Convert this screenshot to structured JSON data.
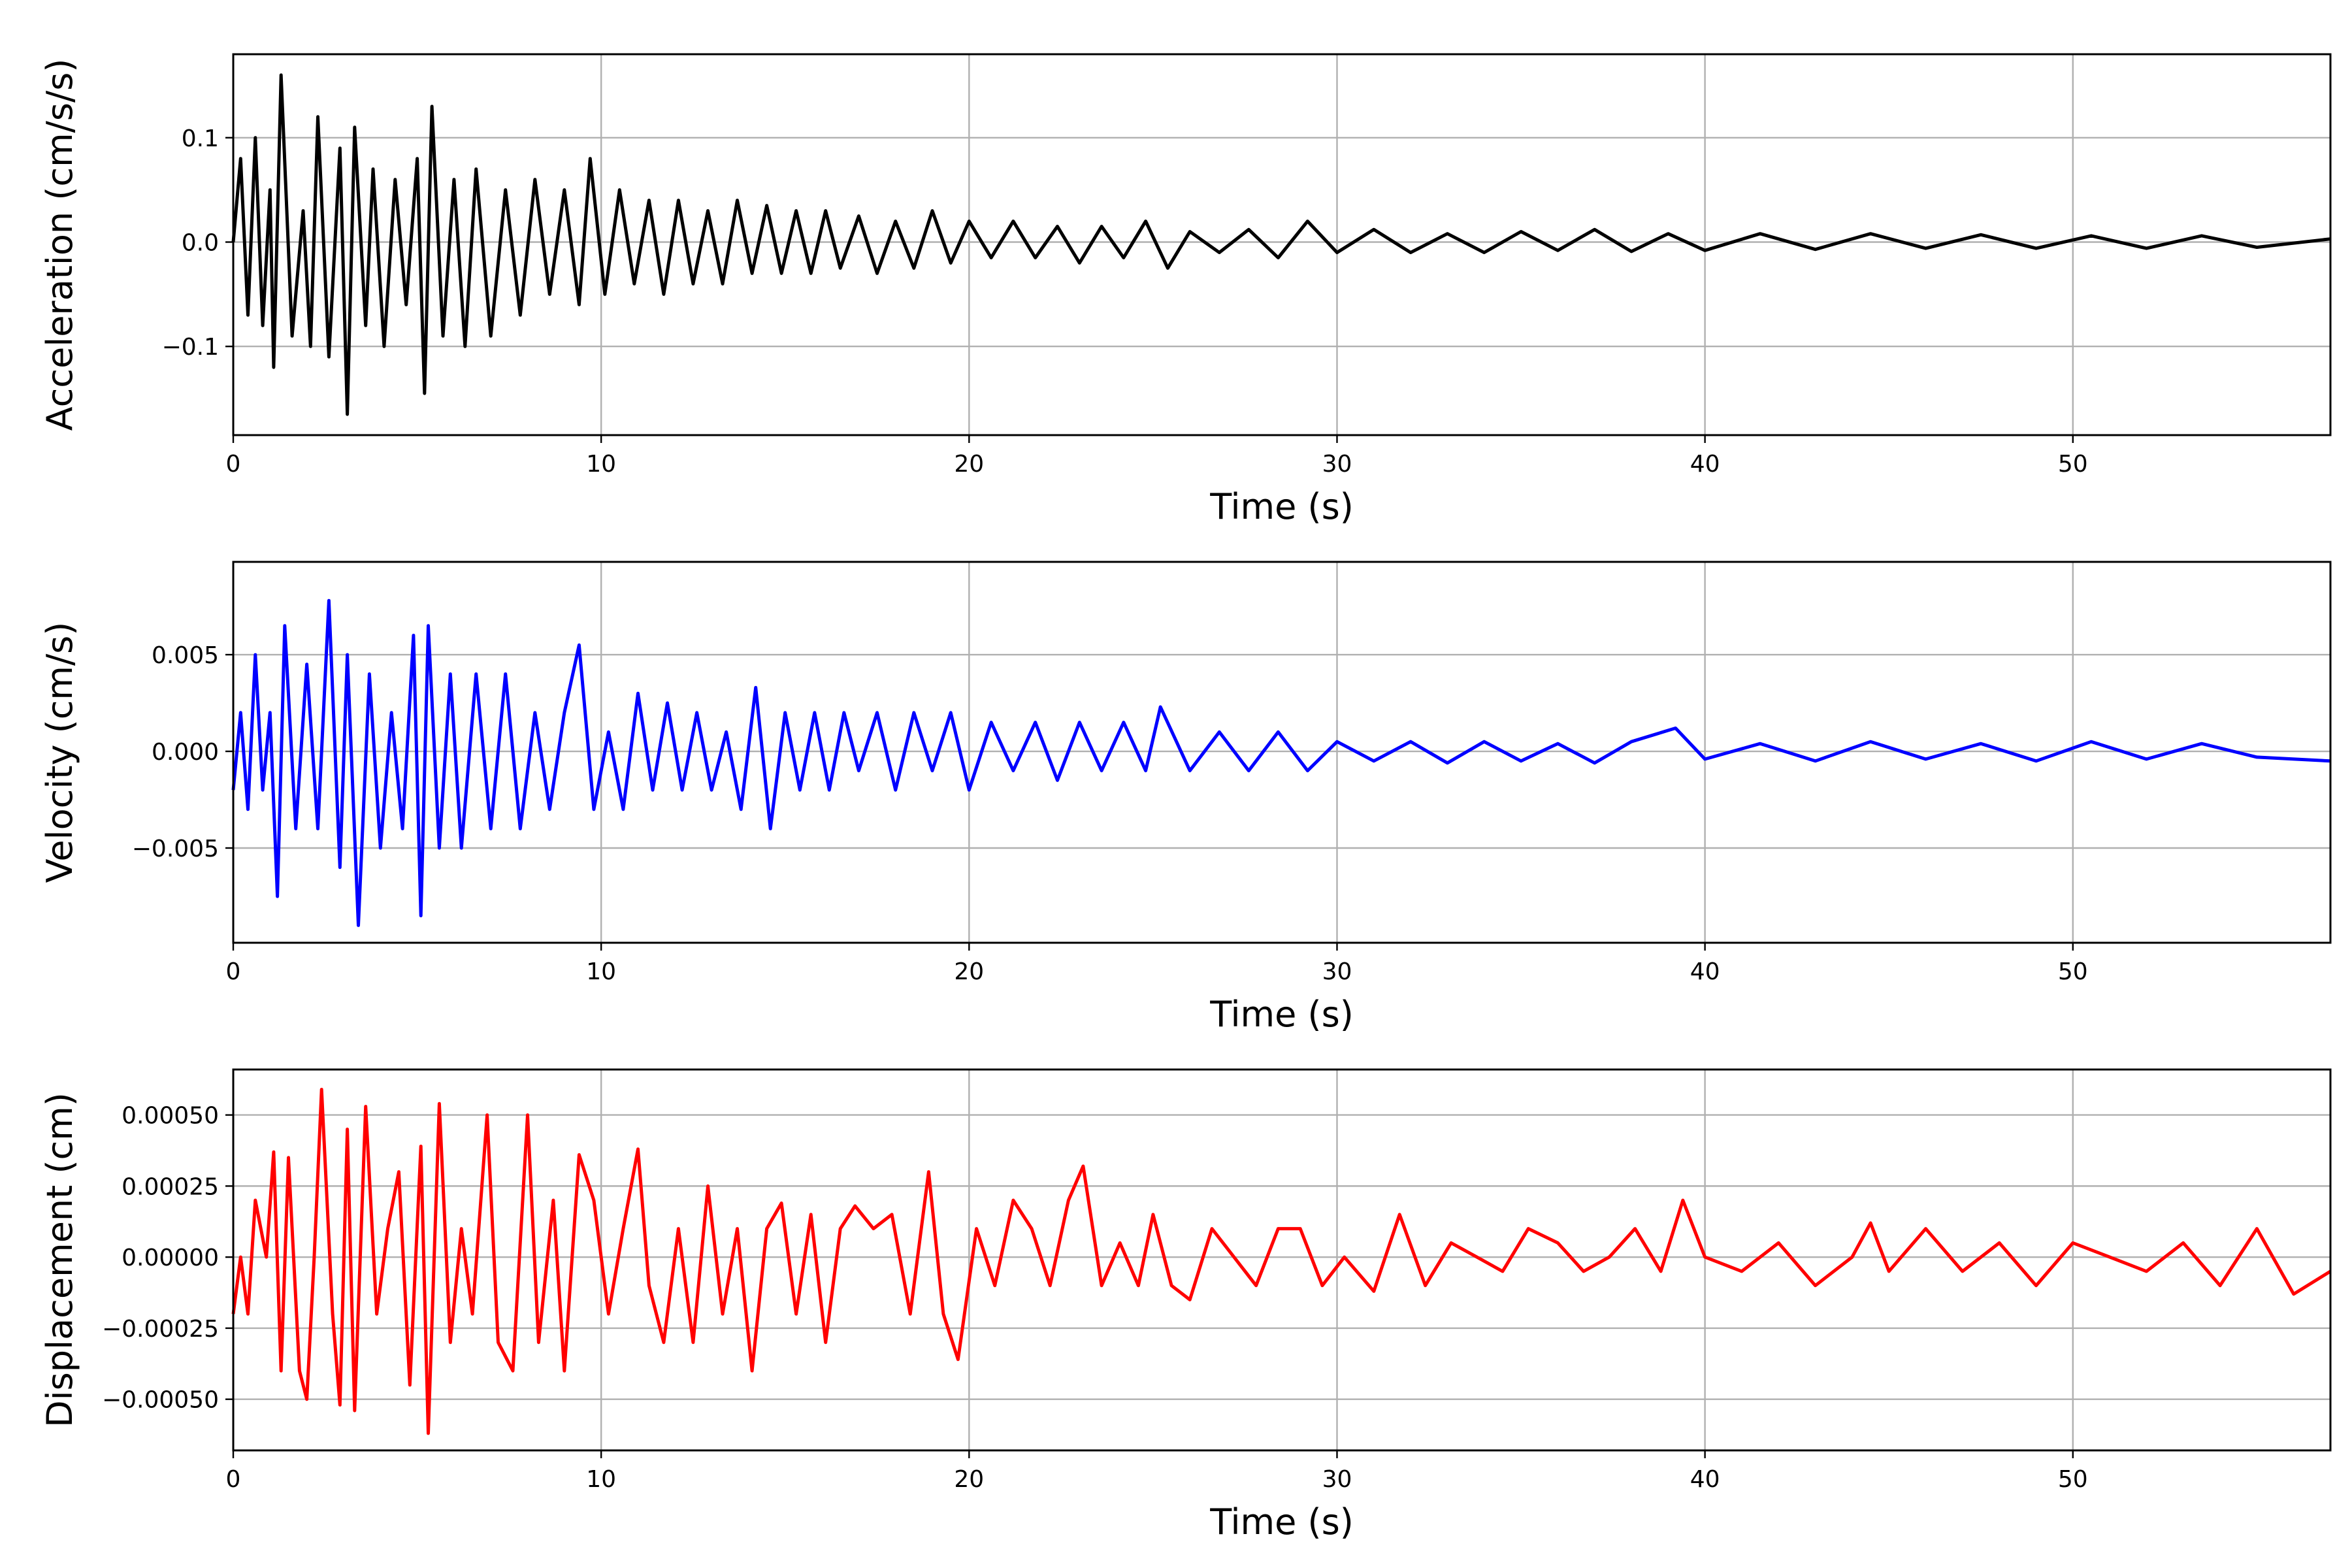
{
  "figure": {
    "background": "#ffffff",
    "grid": true
  },
  "chart_data": [
    {
      "type": "line",
      "title": "",
      "xlabel": "Time (s)",
      "ylabel": "Acceleration (cm/s/s)",
      "xlim": [
        0,
        57
      ],
      "ylim": [
        -0.185,
        0.18
      ],
      "xticks": [
        0,
        10,
        20,
        30,
        40,
        50
      ],
      "xtick_labels": [
        "0",
        "10",
        "20",
        "30",
        "40",
        "50"
      ],
      "yticks": [
        -0.1,
        0.0,
        0.1
      ],
      "ytick_labels": [
        "−0.1",
        "0.0",
        "0.1"
      ],
      "color": "#000000",
      "series": [
        {
          "x": [
            0,
            0.2,
            0.4,
            0.6,
            0.8,
            1.0,
            1.1,
            1.3,
            1.6,
            1.9,
            2.1,
            2.3,
            2.6,
            2.9,
            3.1,
            3.3,
            3.6,
            3.8,
            4.1,
            4.4,
            4.7,
            5.0,
            5.2,
            5.4,
            5.7,
            6.0,
            6.3,
            6.6,
            7.0,
            7.4,
            7.8,
            8.2,
            8.6,
            9.0,
            9.4,
            9.7,
            10.1,
            10.5,
            10.9,
            11.3,
            11.7,
            12.1,
            12.5,
            12.9,
            13.3,
            13.7,
            14.1,
            14.5,
            14.9,
            15.3,
            15.7,
            16.1,
            16.5,
            17.0,
            17.5,
            18.0,
            18.5,
            19.0,
            19.5,
            20.0,
            20.6,
            21.2,
            21.8,
            22.4,
            23.0,
            23.6,
            24.2,
            24.8,
            25.4,
            26.0,
            26.8,
            27.6,
            28.4,
            29.2,
            30.0,
            31.0,
            32.0,
            33.0,
            34.0,
            35.0,
            36.0,
            37.0,
            38.0,
            39.0,
            40.0,
            41.5,
            43.0,
            44.5,
            46.0,
            47.5,
            49.0,
            50.5,
            52.0,
            53.5,
            55.0,
            57.0
          ],
          "y": [
            0.0,
            0.08,
            -0.07,
            0.1,
            -0.08,
            0.05,
            -0.12,
            0.16,
            -0.09,
            0.03,
            -0.1,
            0.12,
            -0.11,
            0.09,
            -0.165,
            0.11,
            -0.08,
            0.07,
            -0.1,
            0.06,
            -0.06,
            0.08,
            -0.145,
            0.13,
            -0.09,
            0.06,
            -0.1,
            0.07,
            -0.09,
            0.05,
            -0.07,
            0.06,
            -0.05,
            0.05,
            -0.06,
            0.08,
            -0.05,
            0.05,
            -0.04,
            0.04,
            -0.05,
            0.04,
            -0.04,
            0.03,
            -0.04,
            0.04,
            -0.03,
            0.035,
            -0.03,
            0.03,
            -0.03,
            0.03,
            -0.025,
            0.025,
            -0.03,
            0.02,
            -0.025,
            0.03,
            -0.02,
            0.02,
            -0.015,
            0.02,
            -0.015,
            0.015,
            -0.02,
            0.015,
            -0.015,
            0.02,
            -0.025,
            0.01,
            -0.01,
            0.012,
            -0.015,
            0.02,
            -0.01,
            0.012,
            -0.01,
            0.008,
            -0.01,
            0.01,
            -0.008,
            0.012,
            -0.009,
            0.008,
            -0.008,
            0.008,
            -0.007,
            0.008,
            -0.006,
            0.007,
            -0.006,
            0.006,
            -0.006,
            0.006,
            -0.005,
            0.003
          ]
        }
      ]
    },
    {
      "type": "line",
      "title": "",
      "xlabel": "Time (s)",
      "ylabel": "Velocity (cm/s)",
      "xlim": [
        0,
        57
      ],
      "ylim": [
        -0.0099,
        0.0098
      ],
      "xticks": [
        0,
        10,
        20,
        30,
        40,
        50
      ],
      "xtick_labels": [
        "0",
        "10",
        "20",
        "30",
        "40",
        "50"
      ],
      "yticks": [
        -0.005,
        0.0,
        0.005
      ],
      "ytick_labels": [
        "−0.005",
        "0.000",
        "0.005"
      ],
      "color": "#0000ff",
      "series": [
        {
          "x": [
            0,
            0.2,
            0.4,
            0.6,
            0.8,
            1.0,
            1.2,
            1.4,
            1.7,
            2.0,
            2.3,
            2.6,
            2.9,
            3.1,
            3.4,
            3.7,
            4.0,
            4.3,
            4.6,
            4.9,
            5.1,
            5.3,
            5.6,
            5.9,
            6.2,
            6.6,
            7.0,
            7.4,
            7.8,
            8.2,
            8.6,
            9.0,
            9.4,
            9.8,
            10.2,
            10.6,
            11.0,
            11.4,
            11.8,
            12.2,
            12.6,
            13.0,
            13.4,
            13.8,
            14.2,
            14.6,
            15.0,
            15.4,
            15.8,
            16.2,
            16.6,
            17.0,
            17.5,
            18.0,
            18.5,
            19.0,
            19.5,
            20.0,
            20.6,
            21.2,
            21.8,
            22.4,
            23.0,
            23.6,
            24.2,
            24.8,
            25.2,
            26.0,
            26.8,
            27.6,
            28.4,
            29.2,
            30.0,
            31.0,
            32.0,
            33.0,
            34.0,
            35.0,
            36.0,
            37.0,
            38.0,
            39.2,
            40.0,
            41.5,
            43.0,
            44.5,
            46.0,
            47.5,
            49.0,
            50.5,
            52.0,
            53.5,
            55.0,
            57.0
          ],
          "y": [
            -0.002,
            0.002,
            -0.003,
            0.005,
            -0.002,
            0.002,
            -0.0075,
            0.0065,
            -0.004,
            0.0045,
            -0.004,
            0.0078,
            -0.006,
            0.005,
            -0.009,
            0.004,
            -0.005,
            0.002,
            -0.004,
            0.006,
            -0.0085,
            0.0065,
            -0.005,
            0.004,
            -0.005,
            0.004,
            -0.004,
            0.004,
            -0.004,
            0.002,
            -0.003,
            0.002,
            0.0055,
            -0.003,
            0.001,
            -0.003,
            0.003,
            -0.002,
            0.0025,
            -0.002,
            0.002,
            -0.002,
            0.001,
            -0.003,
            0.0033,
            -0.004,
            0.002,
            -0.002,
            0.002,
            -0.002,
            0.002,
            -0.001,
            0.002,
            -0.002,
            0.002,
            -0.001,
            0.002,
            -0.002,
            0.0015,
            -0.001,
            0.0015,
            -0.0015,
            0.0015,
            -0.001,
            0.0015,
            -0.001,
            0.0023,
            -0.001,
            0.001,
            -0.001,
            0.001,
            -0.001,
            0.0005,
            -0.0005,
            0.0005,
            -0.0006,
            0.0005,
            -0.0005,
            0.0004,
            -0.0006,
            0.0005,
            0.0012,
            -0.0004,
            0.0004,
            -0.0005,
            0.0005,
            -0.0004,
            0.0004,
            -0.0005,
            0.0005,
            -0.0004,
            0.0004,
            -0.0003,
            -0.0005
          ]
        }
      ]
    },
    {
      "type": "line",
      "title": "",
      "xlabel": "Time (s)",
      "ylabel": "Displacement (cm)",
      "xlim": [
        0,
        57
      ],
      "ylim": [
        -0.00068,
        0.00066
      ],
      "xticks": [
        0,
        10,
        20,
        30,
        40,
        50
      ],
      "xtick_labels": [
        "0",
        "10",
        "20",
        "30",
        "40",
        "50"
      ],
      "yticks": [
        -0.0005,
        -0.00025,
        0.0,
        0.00025,
        0.0005
      ],
      "ytick_labels": [
        "−0.00050",
        "−0.00025",
        "0.00000",
        "0.00025",
        "0.00050"
      ],
      "color": "#ff0000",
      "series": [
        {
          "x": [
            0,
            0.2,
            0.4,
            0.6,
            0.9,
            1.1,
            1.3,
            1.5,
            1.8,
            2.0,
            2.2,
            2.4,
            2.7,
            2.9,
            3.1,
            3.3,
            3.6,
            3.9,
            4.2,
            4.5,
            4.8,
            5.1,
            5.3,
            5.6,
            5.9,
            6.2,
            6.5,
            6.9,
            7.2,
            7.6,
            8.0,
            8.3,
            8.7,
            9.0,
            9.4,
            9.8,
            10.2,
            10.6,
            11.0,
            11.3,
            11.7,
            12.1,
            12.5,
            12.9,
            13.3,
            13.7,
            14.1,
            14.5,
            14.9,
            15.3,
            15.7,
            16.1,
            16.5,
            16.9,
            17.4,
            17.9,
            18.4,
            18.9,
            19.3,
            19.7,
            20.2,
            20.7,
            21.2,
            21.7,
            22.2,
            22.7,
            23.1,
            23.6,
            24.1,
            24.6,
            25.0,
            25.5,
            26.0,
            26.6,
            27.2,
            27.8,
            28.4,
            29.0,
            29.6,
            30.2,
            31.0,
            31.7,
            32.4,
            33.1,
            33.8,
            34.5,
            35.2,
            36.0,
            36.7,
            37.4,
            38.1,
            38.8,
            39.4,
            40.0,
            41.0,
            42.0,
            43.0,
            44.0,
            44.5,
            45.0,
            46.0,
            47.0,
            48.0,
            49.0,
            50.0,
            51.0,
            52.0,
            53.0,
            54.0,
            55.0,
            56.0,
            57.0
          ],
          "y": [
            -0.0002,
            0.0,
            -0.0002,
            0.0002,
            0.0,
            0.00037,
            -0.0004,
            0.00035,
            -0.0004,
            -0.0005,
            0.0,
            0.00059,
            -0.0002,
            -0.00052,
            0.00045,
            -0.00054,
            0.00053,
            -0.0002,
            0.0001,
            0.0003,
            -0.00045,
            0.00039,
            -0.00062,
            0.00054,
            -0.0003,
            0.0001,
            -0.0002,
            0.0005,
            -0.0003,
            -0.0004,
            0.0005,
            -0.0003,
            0.0002,
            -0.0004,
            0.00036,
            0.0002,
            -0.0002,
            0.0001,
            0.00038,
            -0.0001,
            -0.0003,
            0.0001,
            -0.0003,
            0.00025,
            -0.0002,
            0.0001,
            -0.0004,
            0.0001,
            0.00019,
            -0.0002,
            0.00015,
            -0.0003,
            0.0001,
            0.00018,
            0.0001,
            0.00015,
            -0.0002,
            0.0003,
            -0.0002,
            -0.00036,
            0.0001,
            -0.0001,
            0.0002,
            0.0001,
            -0.0001,
            0.0002,
            0.00032,
            -0.0001,
            5e-05,
            -0.0001,
            0.00015,
            -0.0001,
            -0.00015,
            0.0001,
            0.0,
            -0.0001,
            0.0001,
            0.0001,
            -0.0001,
            0.0,
            -0.00012,
            0.00015,
            -0.0001,
            5e-05,
            0.0,
            -5e-05,
            0.0001,
            5e-05,
            -5e-05,
            0.0,
            0.0001,
            -5e-05,
            0.0002,
            0.0,
            -5e-05,
            5e-05,
            -0.0001,
            0.0,
            0.00012,
            -5e-05,
            0.0001,
            -5e-05,
            5e-05,
            -0.0001,
            5e-05,
            0.0,
            -5e-05,
            5e-05,
            -0.0001,
            0.0001,
            -0.00013,
            -5e-05
          ]
        }
      ]
    }
  ]
}
